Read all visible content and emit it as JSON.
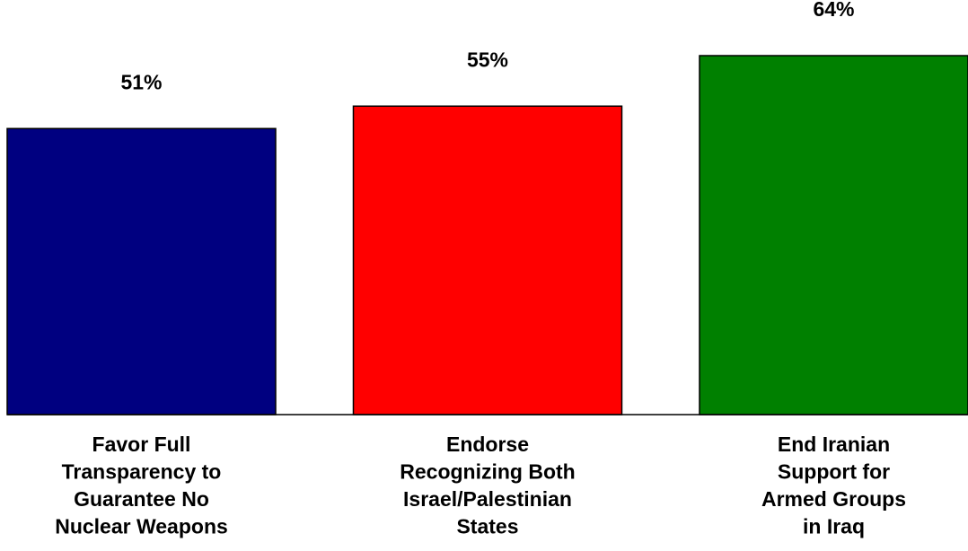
{
  "chart_data": {
    "type": "bar",
    "categories": [
      [
        "Favor Full",
        "Transparency to",
        "Guarantee No",
        "Nuclear Weapons"
      ],
      [
        "Endorse",
        "Recognizing Both",
        "Israel/Palestinian",
        "States"
      ],
      [
        "End Iranian",
        "Support for",
        "Armed Groups",
        "in Iraq"
      ]
    ],
    "values": [
      51,
      55,
      64
    ],
    "value_labels": [
      "51%",
      "55%",
      "64%"
    ],
    "colors": [
      "#000080",
      "#ff0000",
      "#008000"
    ],
    "title": "",
    "xlabel": "",
    "ylabel": "",
    "ylim": [
      0,
      64
    ],
    "grid": false,
    "legend": "none"
  }
}
